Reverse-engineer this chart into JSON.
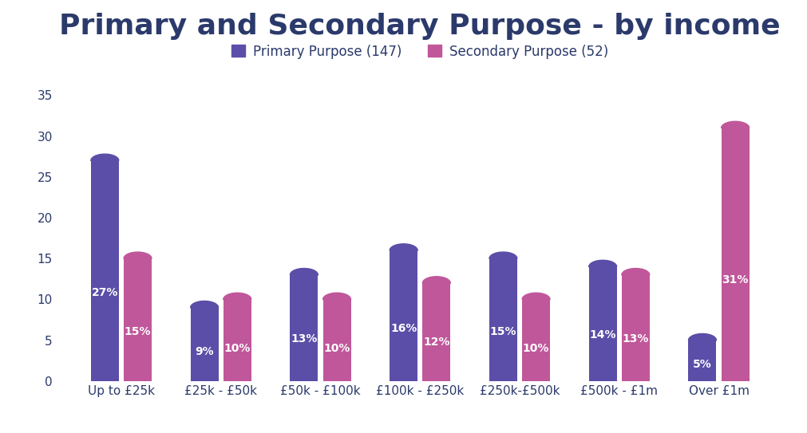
{
  "title": "Primary and Secondary Purpose - by income",
  "categories": [
    "Up to £25k",
    "£25k - £50k",
    "£50k - £100k",
    "£100k - £250k",
    "£250k-£500k",
    "£500k - £1m",
    "Over £1m"
  ],
  "primary_values": [
    27,
    9,
    13,
    16,
    15,
    14,
    5
  ],
  "secondary_values": [
    15,
    10,
    10,
    12,
    10,
    13,
    31
  ],
  "primary_color": "#5B4EA8",
  "secondary_color": "#C0579A",
  "primary_label": "Primary Purpose (147)",
  "secondary_label": "Secondary Purpose (52)",
  "title_color": "#2B3A6B",
  "label_color": "#FFFFFF",
  "tick_color": "#2B3A6B",
  "legend_text_color": "#2B3A6B",
  "ylim": [
    0,
    35
  ],
  "yticks": [
    0,
    5,
    10,
    15,
    20,
    25,
    30,
    35
  ],
  "background_color": "#FFFFFF",
  "title_fontsize": 26,
  "legend_fontsize": 12,
  "bar_label_fontsize": 10,
  "tick_fontsize": 11
}
